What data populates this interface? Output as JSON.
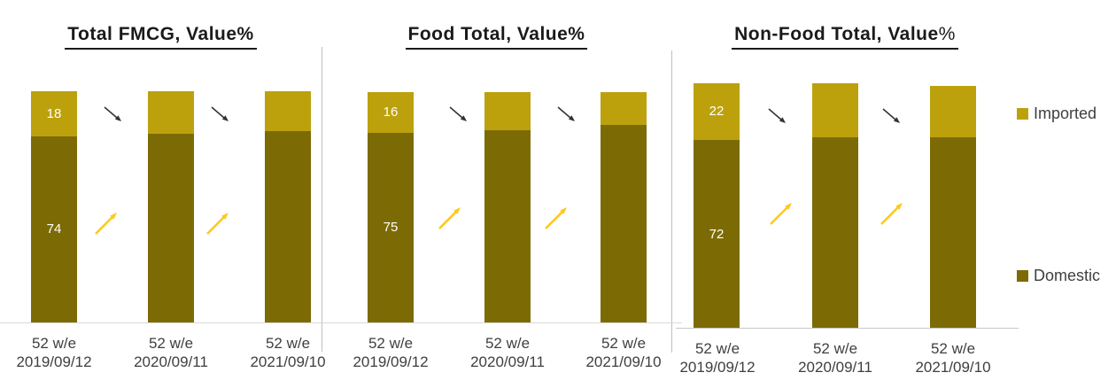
{
  "colors": {
    "imported": "#BCA10D",
    "domestic": "#7C6B04",
    "arrow-increase": "#FFC81E",
    "arrow-decrease": "#333333",
    "divider": "#BFBFBF",
    "baseline": "#D9D9D9",
    "axis-text": "#3F3F3F",
    "title-text": "#1A1A1A",
    "bar-label-text": "#FFFFFF"
  },
  "legend": {
    "position": "right",
    "items": [
      {
        "label": "Imported",
        "color_key": "imported"
      },
      {
        "label": "Domestic",
        "color_key": "domestic"
      }
    ]
  },
  "periods": [
    {
      "line1": "52 w/e",
      "line2": "2019/09/12"
    },
    {
      "line1": "52 w/e",
      "line2": "2020/09/11"
    },
    {
      "line1": "52 w/e",
      "line2": "2021/09/10"
    }
  ],
  "chart_data": [
    {
      "type": "bar",
      "stacked": true,
      "title_main": "Total FMCG, Value",
      "title_pct": "%",
      "categories": [
        "52 w/e 2019/09/12",
        "52 w/e 2020/09/11",
        "52 w/e 2021/09/10"
      ],
      "series": [
        {
          "name": "Domestic",
          "values": [
            74,
            75,
            76
          ],
          "shown_label": "74"
        },
        {
          "name": "Imported",
          "values": [
            18,
            17,
            16
          ],
          "shown_label": "18"
        }
      ],
      "data_labels": {
        "note": "values shown on first bar only",
        "imported": "18",
        "domestic": "74"
      },
      "annotations": [
        {
          "type": "arrow",
          "between_bars": [
            1,
            2
          ],
          "direction": "down-right",
          "meaning": "Imported decreasing"
        },
        {
          "type": "arrow",
          "between_bars": [
            1,
            2
          ],
          "direction": "up-right",
          "meaning": "Domestic increasing"
        },
        {
          "type": "arrow",
          "between_bars": [
            2,
            3
          ],
          "direction": "down-right",
          "meaning": "Imported decreasing"
        },
        {
          "type": "arrow",
          "between_bars": [
            2,
            3
          ],
          "direction": "up-right",
          "meaning": "Domestic increasing"
        }
      ],
      "grid": false,
      "y_axis_shown": false
    },
    {
      "type": "bar",
      "stacked": true,
      "title_main": "Food Total, Value",
      "title_pct": "%",
      "categories": [
        "52 w/e 2019/09/12",
        "52 w/e 2020/09/11",
        "52 w/e 2021/09/10"
      ],
      "series": [
        {
          "name": "Domestic",
          "values": [
            75,
            76,
            78
          ],
          "shown_label": "75"
        },
        {
          "name": "Imported",
          "values": [
            16,
            15,
            13
          ],
          "shown_label": "16"
        }
      ],
      "data_labels": {
        "note": "values shown on first bar only",
        "imported": "16",
        "domestic": "75"
      },
      "annotations": [
        {
          "type": "arrow",
          "between_bars": [
            1,
            2
          ],
          "direction": "down-right",
          "meaning": "Imported decreasing"
        },
        {
          "type": "arrow",
          "between_bars": [
            1,
            2
          ],
          "direction": "up-right",
          "meaning": "Domestic increasing"
        },
        {
          "type": "arrow",
          "between_bars": [
            2,
            3
          ],
          "direction": "down-right",
          "meaning": "Imported decreasing"
        },
        {
          "type": "arrow",
          "between_bars": [
            2,
            3
          ],
          "direction": "up-right",
          "meaning": "Domestic increasing"
        }
      ],
      "grid": false,
      "y_axis_shown": false
    },
    {
      "type": "bar",
      "stacked": true,
      "title_main": "Non-Food Total, Value",
      "title_pct": "%",
      "categories": [
        "52 w/e 2019/09/12",
        "52 w/e 2020/09/11",
        "52 w/e 2021/09/10"
      ],
      "series": [
        {
          "name": "Domestic",
          "values": [
            72,
            73,
            73
          ],
          "shown_label": "72"
        },
        {
          "name": "Imported",
          "values": [
            22,
            21,
            20
          ],
          "shown_label": "22"
        }
      ],
      "data_labels": {
        "note": "values shown on first bar only",
        "imported": "22",
        "domestic": "72"
      },
      "annotations": [
        {
          "type": "arrow",
          "between_bars": [
            1,
            2
          ],
          "direction": "down-right",
          "meaning": "Imported decreasing"
        },
        {
          "type": "arrow",
          "between_bars": [
            1,
            2
          ],
          "direction": "up-right",
          "meaning": "Domestic increasing"
        },
        {
          "type": "arrow",
          "between_bars": [
            2,
            3
          ],
          "direction": "down-right",
          "meaning": "Imported decreasing"
        },
        {
          "type": "arrow",
          "between_bars": [
            2,
            3
          ],
          "direction": "up-right",
          "meaning": "Domestic increasing"
        }
      ],
      "grid": false,
      "y_axis_shown": false
    }
  ]
}
